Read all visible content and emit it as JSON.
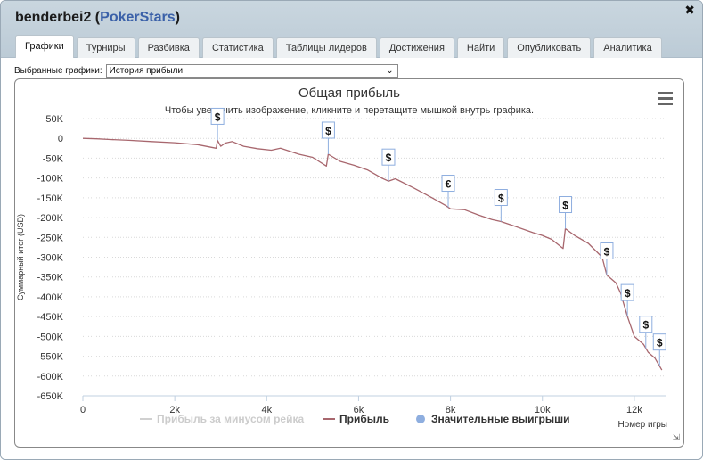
{
  "window": {
    "player": "benderbei2",
    "site": "PokerStars",
    "close_glyph": "✖"
  },
  "tabs": [
    {
      "label": "Графики",
      "active": true
    },
    {
      "label": "Турниры"
    },
    {
      "label": "Разбивка"
    },
    {
      "label": "Статистика"
    },
    {
      "label": "Таблицы лидеров"
    },
    {
      "label": "Достижения"
    },
    {
      "label": "Найти"
    },
    {
      "label": "Опубликовать"
    },
    {
      "label": "Аналитика"
    }
  ],
  "selector": {
    "label": "Выбранные графики:",
    "value": "История прибыли"
  },
  "chart_data": {
    "type": "line",
    "title": "Общая прибыль",
    "subtitle": "Чтобы увеличить изображение, кликните и перетащите мышкой внутрь графика.",
    "xlabel": "Номер игры",
    "ylabel": "Суммарный итог (USD)",
    "xlim": [
      0,
      12700
    ],
    "ylim": [
      -650000,
      50000
    ],
    "x_ticks": [
      0,
      2000,
      4000,
      6000,
      8000,
      10000,
      12000
    ],
    "x_tick_labels": [
      "0",
      "2k",
      "4k",
      "6k",
      "8k",
      "10k",
      "12k"
    ],
    "y_ticks": [
      50000,
      0,
      -50000,
      -100000,
      -150000,
      -200000,
      -250000,
      -300000,
      -350000,
      -400000,
      -450000,
      -500000,
      -550000,
      -600000,
      -650000
    ],
    "y_tick_labels": [
      "50K",
      "0",
      "-50K",
      "-100K",
      "-150K",
      "-200K",
      "-250K",
      "-300K",
      "-350K",
      "-400K",
      "-450K",
      "-500K",
      "-550K",
      "-600K",
      "-650K"
    ],
    "grid": true,
    "legend_position": "bottom",
    "series": [
      {
        "name": "Прибыль за минусом рейка",
        "color": "#d0d0d0",
        "visible": false,
        "values": []
      },
      {
        "name": "Прибыль",
        "color": "#a8676e",
        "points": [
          [
            0,
            0
          ],
          [
            300,
            -1000
          ],
          [
            600,
            -3000
          ],
          [
            1000,
            -5000
          ],
          [
            1500,
            -8000
          ],
          [
            2000,
            -11000
          ],
          [
            2500,
            -16000
          ],
          [
            2900,
            -25000
          ],
          [
            2930,
            -5000
          ],
          [
            3000,
            -20000
          ],
          [
            3100,
            -12000
          ],
          [
            3250,
            -8000
          ],
          [
            3500,
            -20000
          ],
          [
            3800,
            -26000
          ],
          [
            4100,
            -30000
          ],
          [
            4300,
            -25000
          ],
          [
            4700,
            -40000
          ],
          [
            5000,
            -48000
          ],
          [
            5300,
            -70000
          ],
          [
            5340,
            -40000
          ],
          [
            5600,
            -58000
          ],
          [
            5900,
            -68000
          ],
          [
            6200,
            -80000
          ],
          [
            6500,
            -100000
          ],
          [
            6650,
            -108000
          ],
          [
            6800,
            -102000
          ],
          [
            7200,
            -125000
          ],
          [
            7600,
            -150000
          ],
          [
            7900,
            -170000
          ],
          [
            8000,
            -178000
          ],
          [
            8300,
            -180000
          ],
          [
            8600,
            -193000
          ],
          [
            8900,
            -205000
          ],
          [
            9100,
            -210000
          ],
          [
            9400,
            -222000
          ],
          [
            9800,
            -238000
          ],
          [
            10000,
            -245000
          ],
          [
            10200,
            -255000
          ],
          [
            10450,
            -278000
          ],
          [
            10500,
            -228000
          ],
          [
            10700,
            -245000
          ],
          [
            11000,
            -265000
          ],
          [
            11300,
            -300000
          ],
          [
            11400,
            -345000
          ],
          [
            11600,
            -365000
          ],
          [
            11700,
            -390000
          ],
          [
            11850,
            -450000
          ],
          [
            12000,
            -500000
          ],
          [
            12200,
            -520000
          ],
          [
            12300,
            -540000
          ],
          [
            12450,
            -555000
          ],
          [
            12600,
            -585000
          ]
        ]
      },
      {
        "name": "Значительные выигрыши",
        "color": "#8eaedf",
        "marker": "circle",
        "flags": [
          {
            "x": 2930,
            "label": "$"
          },
          {
            "x": 5340,
            "label": "$"
          },
          {
            "x": 6650,
            "label": "$"
          },
          {
            "x": 7950,
            "label": "€"
          },
          {
            "x": 9100,
            "label": "$"
          },
          {
            "x": 10500,
            "label": "$"
          },
          {
            "x": 11400,
            "label": "$"
          },
          {
            "x": 11850,
            "label": "$"
          },
          {
            "x": 12250,
            "label": "$"
          },
          {
            "x": 12550,
            "label": "$"
          }
        ]
      }
    ]
  }
}
